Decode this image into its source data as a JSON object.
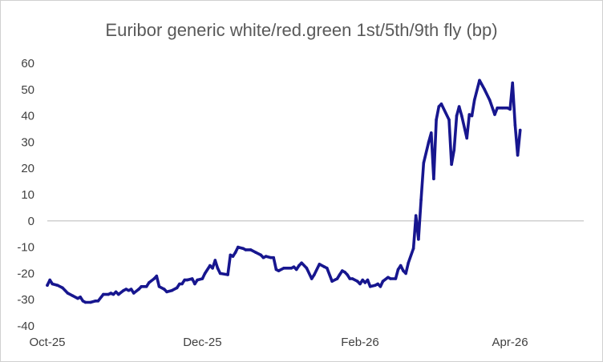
{
  "chart_data": {
    "type": "line",
    "title": "Euribor generic white/red.green 1st/5th/9th fly (bp)",
    "xlabel": "",
    "ylabel": "",
    "ylim": [
      -40,
      60
    ],
    "y_ticks": [
      60,
      50,
      40,
      30,
      20,
      10,
      0,
      -10,
      -20,
      -30,
      -40
    ],
    "x_range": [
      "2025-10-01",
      "2026-04-30"
    ],
    "x_ticks": [
      {
        "date": "2025-10-01",
        "label": "Oct-25"
      },
      {
        "date": "2025-12-01",
        "label": "Dec-25"
      },
      {
        "date": "2026-02-01",
        "label": "Feb-26"
      },
      {
        "date": "2026-04-01",
        "label": "Apr-26"
      }
    ],
    "grid": false,
    "legend": "none",
    "colors": {
      "line": "#17168f",
      "axis": "#bfbfbf",
      "title": "#595959",
      "tick": "#404040"
    },
    "series": [
      {
        "name": "",
        "points": [
          [
            "2025-10-01",
            -24.5
          ],
          [
            "2025-10-02",
            -22.5
          ],
          [
            "2025-10-03",
            -24.0
          ],
          [
            "2025-10-05",
            -24.5
          ],
          [
            "2025-10-07",
            -25.5
          ],
          [
            "2025-10-09",
            -27.5
          ],
          [
            "2025-10-11",
            -28.5
          ],
          [
            "2025-10-13",
            -29.5
          ],
          [
            "2025-10-14",
            -29.0
          ],
          [
            "2025-10-15",
            -30.5
          ],
          [
            "2025-10-16",
            -31.0
          ],
          [
            "2025-10-18",
            -31.0
          ],
          [
            "2025-10-20",
            -30.5
          ],
          [
            "2025-10-21",
            -30.5
          ],
          [
            "2025-10-23",
            -28.0
          ],
          [
            "2025-10-25",
            -28.0
          ],
          [
            "2025-10-26",
            -27.5
          ],
          [
            "2025-10-27",
            -28.0
          ],
          [
            "2025-10-28",
            -27.0
          ],
          [
            "2025-10-29",
            -28.0
          ],
          [
            "2025-10-31",
            -26.5
          ],
          [
            "2025-11-01",
            -26.0
          ],
          [
            "2025-11-02",
            -26.5
          ],
          [
            "2025-11-03",
            -26.0
          ],
          [
            "2025-11-04",
            -27.5
          ],
          [
            "2025-11-06",
            -26.0
          ],
          [
            "2025-11-07",
            -25.0
          ],
          [
            "2025-11-09",
            -25.0
          ],
          [
            "2025-11-10",
            -23.5
          ],
          [
            "2025-11-12",
            -22.0
          ],
          [
            "2025-11-13",
            -21.0
          ],
          [
            "2025-11-14",
            -25.0
          ],
          [
            "2025-11-16",
            -26.0
          ],
          [
            "2025-11-17",
            -27.0
          ],
          [
            "2025-11-19",
            -26.5
          ],
          [
            "2025-11-21",
            -25.5
          ],
          [
            "2025-11-22",
            -24.0
          ],
          [
            "2025-11-23",
            -24.0
          ],
          [
            "2025-11-24",
            -22.5
          ],
          [
            "2025-11-25",
            -22.5
          ],
          [
            "2025-11-27",
            -22.0
          ],
          [
            "2025-11-28",
            -24.0
          ],
          [
            "2025-11-29",
            -22.5
          ],
          [
            "2025-12-01",
            -22.0
          ],
          [
            "2025-12-02",
            -20.0
          ],
          [
            "2025-12-04",
            -17.0
          ],
          [
            "2025-12-05",
            -18.0
          ],
          [
            "2025-12-06",
            -15.0
          ],
          [
            "2025-12-07",
            -18.0
          ],
          [
            "2025-12-08",
            -20.0
          ],
          [
            "2025-12-11",
            -20.5
          ],
          [
            "2025-12-12",
            -13.0
          ],
          [
            "2025-12-13",
            -13.5
          ],
          [
            "2025-12-14",
            -12.0
          ],
          [
            "2025-12-15",
            -10.0
          ],
          [
            "2025-12-17",
            -10.5
          ],
          [
            "2025-12-18",
            -11.0
          ],
          [
            "2025-12-20",
            -11.0
          ],
          [
            "2025-12-22",
            -12.0
          ],
          [
            "2025-12-24",
            -13.0
          ],
          [
            "2025-12-25",
            -14.0
          ],
          [
            "2025-12-26",
            -13.5
          ],
          [
            "2025-12-28",
            -14.0
          ],
          [
            "2025-12-29",
            -14.0
          ],
          [
            "2025-12-30",
            -18.5
          ],
          [
            "2025-12-31",
            -19.0
          ],
          [
            "2026-01-02",
            -18.0
          ],
          [
            "2026-01-05",
            -18.0
          ],
          [
            "2026-01-06",
            -17.5
          ],
          [
            "2026-01-07",
            -18.5
          ],
          [
            "2026-01-08",
            -17.0
          ],
          [
            "2026-01-09",
            -16.0
          ],
          [
            "2026-01-11",
            -18.0
          ],
          [
            "2026-01-13",
            -22.0
          ],
          [
            "2026-01-14",
            -20.5
          ],
          [
            "2026-01-16",
            -16.5
          ],
          [
            "2026-01-18",
            -17.5
          ],
          [
            "2026-01-19",
            -18.0
          ],
          [
            "2026-01-21",
            -23.0
          ],
          [
            "2026-01-23",
            -22.0
          ],
          [
            "2026-01-24",
            -20.5
          ],
          [
            "2026-01-25",
            -19.0
          ],
          [
            "2026-01-26",
            -19.5
          ],
          [
            "2026-01-27",
            -20.5
          ],
          [
            "2026-01-28",
            -22.0
          ],
          [
            "2026-01-29",
            -22.0
          ],
          [
            "2026-01-31",
            -23.0
          ],
          [
            "2026-02-01",
            -24.0
          ],
          [
            "2026-02-02",
            -22.5
          ],
          [
            "2026-02-03",
            -23.5
          ],
          [
            "2026-02-04",
            -22.5
          ],
          [
            "2026-02-05",
            -25.0
          ],
          [
            "2026-02-07",
            -24.5
          ],
          [
            "2026-02-08",
            -24.0
          ],
          [
            "2026-02-09",
            -25.0
          ],
          [
            "2026-02-10",
            -23.0
          ],
          [
            "2026-02-12",
            -21.5
          ],
          [
            "2026-02-13",
            -22.0
          ],
          [
            "2026-02-15",
            -22.0
          ],
          [
            "2026-02-16",
            -18.5
          ],
          [
            "2026-02-17",
            -17.0
          ],
          [
            "2026-02-18",
            -19.0
          ],
          [
            "2026-02-19",
            -20.0
          ],
          [
            "2026-02-20",
            -16.0
          ],
          [
            "2026-02-22",
            -10.5
          ],
          [
            "2026-02-23",
            2.0
          ],
          [
            "2026-02-24",
            -7.0
          ],
          [
            "2026-02-25",
            8.0
          ],
          [
            "2026-02-26",
            22.0
          ],
          [
            "2026-02-28",
            30.0
          ],
          [
            "2026-03-01",
            33.5
          ],
          [
            "2026-03-02",
            16.0
          ],
          [
            "2026-03-03",
            38.5
          ],
          [
            "2026-03-04",
            43.5
          ],
          [
            "2026-03-05",
            44.5
          ],
          [
            "2026-03-08",
            38.5
          ],
          [
            "2026-03-09",
            21.5
          ],
          [
            "2026-03-10",
            27.0
          ],
          [
            "2026-03-11",
            40.0
          ],
          [
            "2026-03-12",
            43.5
          ],
          [
            "2026-03-13",
            40.0
          ],
          [
            "2026-03-15",
            31.5
          ],
          [
            "2026-03-16",
            40.5
          ],
          [
            "2026-03-17",
            40.0
          ],
          [
            "2026-03-18",
            46.0
          ],
          [
            "2026-03-20",
            53.5
          ],
          [
            "2026-03-22",
            50.0
          ],
          [
            "2026-03-24",
            46.0
          ],
          [
            "2026-03-26",
            40.5
          ],
          [
            "2026-03-27",
            43.0
          ],
          [
            "2026-03-29",
            43.0
          ],
          [
            "2026-03-31",
            43.0
          ],
          [
            "2026-04-01",
            42.5
          ],
          [
            "2026-04-02",
            52.5
          ],
          [
            "2026-04-03",
            36.5
          ],
          [
            "2026-04-04",
            25.0
          ],
          [
            "2026-04-05",
            34.5
          ]
        ]
      }
    ]
  }
}
